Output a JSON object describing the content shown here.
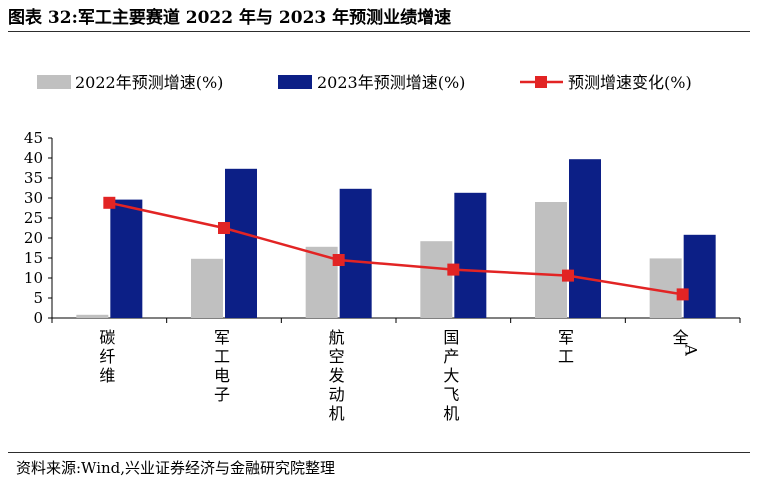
{
  "header": {
    "title": "图表 32:军工主要赛道 2022 年与 2023 年预测业绩增速"
  },
  "footer": {
    "source": "资料来源:Wind,兴业证券经济与金融研究院整理"
  },
  "colors": {
    "gray": "#c0c0c0",
    "navy": "#0c1f86",
    "red": "#e22424"
  },
  "chart_data": {
    "type": "bar+line",
    "categories": [
      "碳纤维",
      "军工电子",
      "航空发动机",
      "国产大飞机",
      "军工",
      "全A"
    ],
    "series": [
      {
        "name": "2022年预测增速(%)",
        "kind": "bar",
        "values": [
          0.8,
          14.8,
          17.8,
          19.2,
          29.0,
          14.9
        ]
      },
      {
        "name": "2023年预测增速(%)",
        "kind": "bar",
        "values": [
          29.6,
          37.3,
          32.3,
          31.3,
          39.7,
          20.8
        ]
      },
      {
        "name": "预测增速变化(%)",
        "kind": "line",
        "values": [
          28.8,
          22.5,
          14.5,
          12.1,
          10.6,
          5.9
        ]
      }
    ],
    "ylim": [
      0,
      45
    ],
    "yticks": [
      "0",
      "5",
      "10",
      "15",
      "20",
      "25",
      "30",
      "35",
      "40",
      "45"
    ],
    "legend": "top",
    "grid": false
  }
}
